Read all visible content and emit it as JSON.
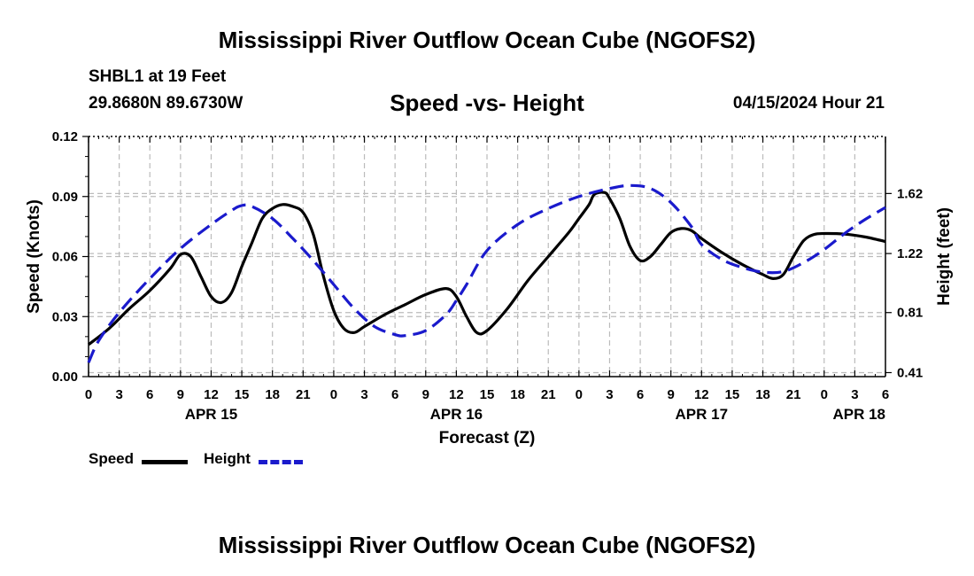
{
  "header": {
    "title": "Mississippi River Outflow Ocean Cube (NGOFS2)",
    "station": "SHBL1 at 19 Feet",
    "coords": "29.8680N  89.6730W",
    "subtitle": "Speed -vs- Height",
    "datetime": "04/15/2024 Hour 21"
  },
  "footer": {
    "title": "Mississippi River Outflow Ocean Cube (NGOFS2)"
  },
  "legend": {
    "speed_label": "Speed",
    "height_label": "Height"
  },
  "colors": {
    "speed": "#000000",
    "height": "#1a1acc",
    "grid": "#bbbbbb"
  },
  "chart_data": {
    "type": "line",
    "xlabel": "Forecast (Z)",
    "ylabel_left": "Speed (Knots)",
    "ylabel_right": "Height (feet)",
    "xlim": [
      0,
      78
    ],
    "ylim_left": [
      0,
      0.12
    ],
    "ylim_right_mapped": [
      0,
      0.12
    ],
    "x_tick_values": [
      0,
      3,
      6,
      9,
      12,
      15,
      18,
      21,
      24,
      27,
      30,
      33,
      36,
      39,
      42,
      45,
      48,
      51,
      54,
      57,
      60,
      63,
      66,
      69,
      72,
      75,
      78
    ],
    "x_tick_labels": [
      "0",
      "3",
      "6",
      "9",
      "12",
      "15",
      "18",
      "21",
      "0",
      "3",
      "6",
      "9",
      "12",
      "15",
      "18",
      "21",
      "0",
      "3",
      "6",
      "9",
      "12",
      "15",
      "18",
      "21",
      "0",
      "3",
      "6"
    ],
    "date_labels": [
      {
        "label": "APR 15",
        "x": 12
      },
      {
        "label": "APR 16",
        "x": 36
      },
      {
        "label": "APR 17",
        "x": 60
      },
      {
        "label": "APR 18",
        "x": 78
      }
    ],
    "y_left_ticks": [
      {
        "value": 0,
        "label": "0.00"
      },
      {
        "value": 0.03,
        "label": "0.03"
      },
      {
        "value": 0.06,
        "label": "0.06"
      },
      {
        "value": 0.09,
        "label": "0.09"
      },
      {
        "value": 0.12,
        "label": "0.12"
      }
    ],
    "y_right_ticks": [
      {
        "value": 0.002,
        "label": "0.41"
      },
      {
        "value": 0.032,
        "label": "0.81"
      },
      {
        "value": 0.0615,
        "label": "1.22"
      },
      {
        "value": 0.0915,
        "label": "1.62"
      }
    ],
    "series": [
      {
        "name": "Speed",
        "style": "solid",
        "points": [
          [
            0,
            0.016
          ],
          [
            2,
            0.024
          ],
          [
            4,
            0.034
          ],
          [
            6,
            0.043
          ],
          [
            8,
            0.054
          ],
          [
            9,
            0.061
          ],
          [
            10,
            0.06
          ],
          [
            11,
            0.05
          ],
          [
            12,
            0.04
          ],
          [
            13,
            0.037
          ],
          [
            14,
            0.042
          ],
          [
            15,
            0.055
          ],
          [
            16,
            0.067
          ],
          [
            17,
            0.079
          ],
          [
            18,
            0.084
          ],
          [
            19,
            0.086
          ],
          [
            20,
            0.085
          ],
          [
            21,
            0.082
          ],
          [
            22,
            0.071
          ],
          [
            23,
            0.05
          ],
          [
            24,
            0.033
          ],
          [
            25,
            0.024
          ],
          [
            26,
            0.022
          ],
          [
            27,
            0.025
          ],
          [
            29,
            0.031
          ],
          [
            31,
            0.036
          ],
          [
            33,
            0.041
          ],
          [
            35,
            0.044
          ],
          [
            36,
            0.04
          ],
          [
            37,
            0.03
          ],
          [
            38,
            0.022
          ],
          [
            39,
            0.023
          ],
          [
            41,
            0.034
          ],
          [
            43,
            0.048
          ],
          [
            45,
            0.06
          ],
          [
            47,
            0.072
          ],
          [
            48,
            0.079
          ],
          [
            49,
            0.086
          ],
          [
            49.5,
            0.091
          ],
          [
            50.5,
            0.092
          ],
          [
            51,
            0.089
          ],
          [
            52,
            0.079
          ],
          [
            53,
            0.065
          ],
          [
            54,
            0.058
          ],
          [
            55,
            0.06
          ],
          [
            56,
            0.066
          ],
          [
            57,
            0.072
          ],
          [
            58,
            0.074
          ],
          [
            59,
            0.073
          ],
          [
            60,
            0.069
          ],
          [
            62,
            0.062
          ],
          [
            64,
            0.056
          ],
          [
            66,
            0.051
          ],
          [
            67,
            0.049
          ],
          [
            68,
            0.051
          ],
          [
            69,
            0.06
          ],
          [
            70,
            0.068
          ],
          [
            71,
            0.071
          ],
          [
            72,
            0.0715
          ],
          [
            74,
            0.0712
          ],
          [
            76,
            0.0698
          ],
          [
            78,
            0.0675
          ]
        ]
      },
      {
        "name": "Height",
        "style": "dashed",
        "points": [
          [
            0,
            0.007
          ],
          [
            1,
            0.018
          ],
          [
            3,
            0.032
          ],
          [
            6,
            0.049
          ],
          [
            9,
            0.064
          ],
          [
            12,
            0.076
          ],
          [
            14,
            0.083
          ],
          [
            15,
            0.0855
          ],
          [
            16,
            0.085
          ],
          [
            18,
            0.079
          ],
          [
            20,
            0.069
          ],
          [
            22,
            0.058
          ],
          [
            24,
            0.046
          ],
          [
            26,
            0.034
          ],
          [
            28,
            0.025
          ],
          [
            30,
            0.021
          ],
          [
            31,
            0.0205
          ],
          [
            33,
            0.023
          ],
          [
            35,
            0.031
          ],
          [
            36,
            0.038
          ],
          [
            37,
            0.046
          ],
          [
            39,
            0.063
          ],
          [
            42,
            0.076
          ],
          [
            45,
            0.084
          ],
          [
            48,
            0.09
          ],
          [
            51,
            0.094
          ],
          [
            53,
            0.0955
          ],
          [
            55,
            0.094
          ],
          [
            57,
            0.087
          ],
          [
            59,
            0.075
          ],
          [
            60,
            0.066
          ],
          [
            62,
            0.0585
          ],
          [
            64,
            0.0545
          ],
          [
            66,
            0.0522
          ],
          [
            68,
            0.0525
          ],
          [
            70,
            0.057
          ],
          [
            72,
            0.0635
          ],
          [
            74,
            0.0715
          ],
          [
            76,
            0.0785
          ],
          [
            78,
            0.0845
          ]
        ]
      }
    ]
  }
}
